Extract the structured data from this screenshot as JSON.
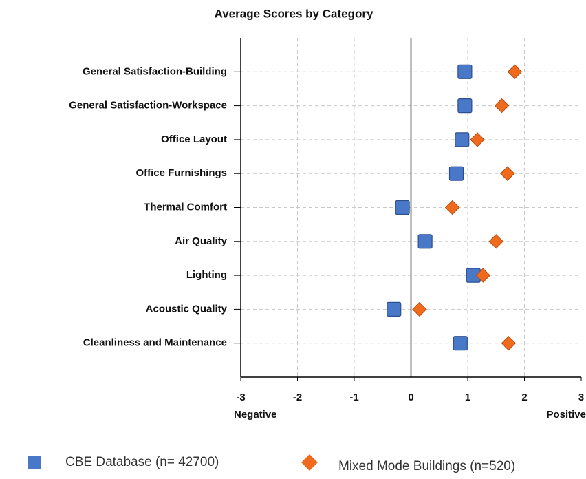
{
  "chart_data": {
    "type": "dot",
    "title": "Average Scores by Category",
    "categories": [
      "General Satisfaction-Building",
      "General Satisfaction-Workspace",
      "Office Layout",
      "Office Furnishings",
      "Thermal Comfort",
      "Air Quality",
      "Lighting",
      "Acoustic Quality",
      "Cleanliness and Maintenance"
    ],
    "series": [
      {
        "name": "CBE Database (n= 42700)",
        "color": "#4a78c8",
        "marker": "square",
        "values": [
          0.95,
          0.95,
          0.9,
          0.8,
          -0.15,
          0.25,
          1.1,
          -0.3,
          0.87
        ]
      },
      {
        "name": "Mixed Mode Buildings (n=520)",
        "color": "#f06a1e",
        "marker": "diamond",
        "values": [
          1.83,
          1.6,
          1.17,
          1.7,
          0.73,
          1.5,
          1.27,
          0.15,
          1.72
        ]
      }
    ],
    "xlim": [
      -3,
      3
    ],
    "xticks": [
      -3,
      -2,
      -1,
      0,
      1,
      2,
      3
    ],
    "x_end_labels": [
      "Negative",
      "Positive"
    ],
    "grid": true,
    "legend": "bottom"
  }
}
